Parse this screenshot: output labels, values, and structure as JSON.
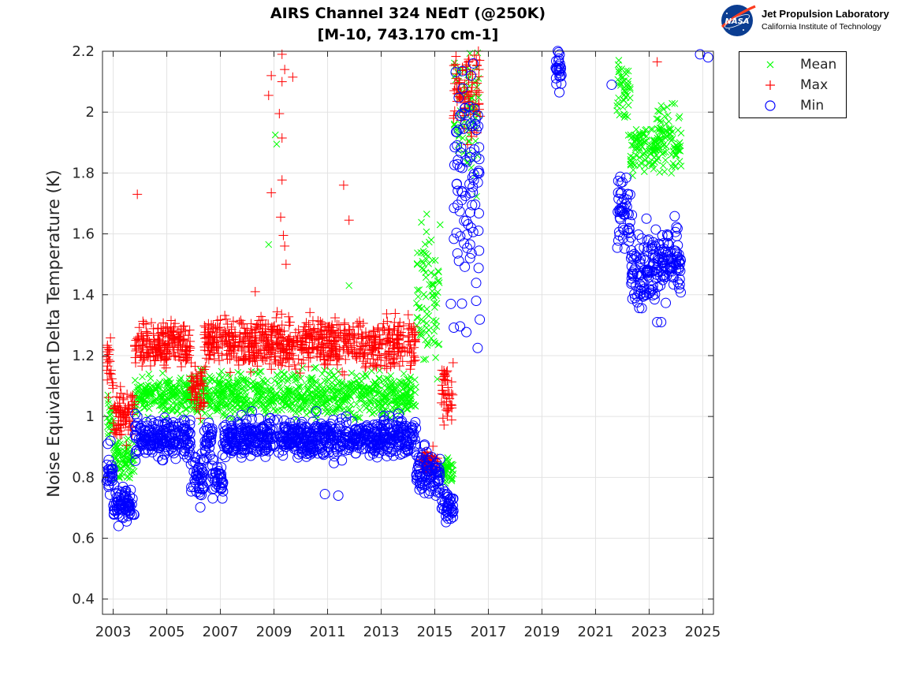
{
  "chart_data": {
    "type": "scatter",
    "title": "AIRS Channel 324 NEdT (@250K)",
    "subtitle": "[M-10, 743.170 cm-1]",
    "xlabel": "",
    "ylabel": "Noise Equivalent Delta Temperature (K)",
    "xlim": [
      2002.6,
      2025.4
    ],
    "ylim": [
      0.35,
      2.2
    ],
    "xticks": [
      2003,
      2005,
      2007,
      2009,
      2011,
      2013,
      2015,
      2017,
      2019,
      2021,
      2023,
      2025
    ],
    "xtick_labels": [
      "2003",
      "2005",
      "2007",
      "2009",
      "2011",
      "2013",
      "2015",
      "2017",
      "2019",
      "2021",
      "2023",
      "2025"
    ],
    "yticks": [
      0.4,
      0.6,
      0.8,
      1.0,
      1.2,
      1.4,
      1.6,
      1.8,
      2.0,
      2.2
    ],
    "ytick_labels": [
      "0.4",
      "0.6",
      "0.8",
      "1",
      "1.2",
      "1.4",
      "1.6",
      "1.8",
      "2",
      "2.2"
    ],
    "grid": true,
    "legend_position": "outside-top-right",
    "series": [
      {
        "name": "Mean",
        "color": "#00ff00",
        "marker": "x",
        "segments": [
          {
            "x0": 2002.75,
            "x1": 2003.0,
            "center": 0.99,
            "spread": 0.04
          },
          {
            "x0": 2003.0,
            "x1": 2003.8,
            "center": 0.86,
            "spread": 0.03
          },
          {
            "x0": 2003.8,
            "x1": 2005.9,
            "center": 1.07,
            "spread": 0.03
          },
          {
            "x0": 2005.9,
            "x1": 2006.4,
            "center": 1.08,
            "spread": 0.04
          },
          {
            "x0": 2006.4,
            "x1": 2014.3,
            "center": 1.07,
            "spread": 0.035
          },
          {
            "x0": 2014.3,
            "x1": 2015.2,
            "center": 1.38,
            "spread": 0.12
          },
          {
            "x0": 2015.25,
            "x1": 2015.7,
            "center": 0.82,
            "spread": 0.02
          },
          {
            "x0": 2015.7,
            "x1": 2016.7,
            "center": 2.05,
            "spread": 0.14
          },
          {
            "x0": 2021.8,
            "x1": 2022.3,
            "center": 2.08,
            "spread": 0.06
          },
          {
            "x0": 2022.3,
            "x1": 2023.3,
            "center": 1.88,
            "spread": 0.04
          },
          {
            "x0": 2023.3,
            "x1": 2024.2,
            "center": 1.91,
            "spread": 0.05
          }
        ],
        "outliers": [
          [
            2008.8,
            1.565
          ],
          [
            2009.05,
            1.925
          ],
          [
            2009.1,
            1.895
          ],
          [
            2011.8,
            1.43
          ],
          [
            2014.7,
            1.665
          ],
          [
            2015.2,
            1.63
          ],
          [
            2015.9,
            1.92
          ]
        ]
      },
      {
        "name": "Max",
        "color": "#ff0000",
        "marker": "+",
        "segments": [
          {
            "x0": 2002.75,
            "x1": 2003.0,
            "center": 1.17,
            "spread": 0.05
          },
          {
            "x0": 2003.0,
            "x1": 2003.8,
            "center": 1.01,
            "spread": 0.04
          },
          {
            "x0": 2003.8,
            "x1": 2005.9,
            "center": 1.24,
            "spread": 0.035
          },
          {
            "x0": 2005.9,
            "x1": 2006.4,
            "center": 1.08,
            "spread": 0.04
          },
          {
            "x0": 2006.4,
            "x1": 2014.3,
            "center": 1.24,
            "spread": 0.04
          },
          {
            "x0": 2014.5,
            "x1": 2015.1,
            "center": 0.85,
            "spread": 0.02
          },
          {
            "x0": 2015.25,
            "x1": 2015.7,
            "center": 1.07,
            "spread": 0.06
          },
          {
            "x0": 2015.7,
            "x1": 2016.7,
            "center": 2.1,
            "spread": 0.08
          }
        ],
        "outliers": [
          [
            2003.9,
            1.73
          ],
          [
            2008.8,
            2.055
          ],
          [
            2008.9,
            2.12
          ],
          [
            2008.9,
            1.735
          ],
          [
            2009.2,
            1.995
          ],
          [
            2009.3,
            1.915
          ],
          [
            2009.3,
            1.777
          ],
          [
            2009.25,
            1.655
          ],
          [
            2009.35,
            1.595
          ],
          [
            2009.4,
            1.56
          ],
          [
            2009.45,
            1.5
          ],
          [
            2009.3,
            2.19
          ],
          [
            2009.3,
            2.1
          ],
          [
            2009.4,
            2.14
          ],
          [
            2009.7,
            2.115
          ],
          [
            2011.6,
            1.76
          ],
          [
            2011.8,
            1.645
          ],
          [
            2023.3,
            2.165
          ],
          [
            2015.7,
            1.98
          ],
          [
            2009.6,
            1.31
          ],
          [
            2008.3,
            1.41
          ]
        ]
      },
      {
        "name": "Min",
        "color": "#0000ff",
        "marker": "o",
        "segments": [
          {
            "x0": 2002.75,
            "x1": 2003.0,
            "center": 0.81,
            "spread": 0.03
          },
          {
            "x0": 2003.0,
            "x1": 2003.8,
            "center": 0.71,
            "spread": 0.025
          },
          {
            "x0": 2003.8,
            "x1": 2005.9,
            "center": 0.93,
            "spread": 0.03
          },
          {
            "x0": 2005.9,
            "x1": 2006.4,
            "center": 0.8,
            "spread": 0.035
          },
          {
            "x0": 2006.4,
            "x1": 2006.7,
            "center": 0.93,
            "spread": 0.03
          },
          {
            "x0": 2006.7,
            "x1": 2007.1,
            "center": 0.79,
            "spread": 0.035
          },
          {
            "x0": 2007.1,
            "x1": 2014.3,
            "center": 0.93,
            "spread": 0.03
          },
          {
            "x0": 2014.3,
            "x1": 2015.2,
            "center": 0.82,
            "spread": 0.04
          },
          {
            "x0": 2015.25,
            "x1": 2015.7,
            "center": 0.71,
            "spread": 0.025
          },
          {
            "x0": 2015.7,
            "x1": 2016.7,
            "center": 1.78,
            "spread": 0.22
          },
          {
            "x0": 2019.5,
            "x1": 2019.75,
            "center": 2.15,
            "spread": 0.03
          },
          {
            "x0": 2021.8,
            "x1": 2022.3,
            "center": 1.66,
            "spread": 0.06
          },
          {
            "x0": 2022.3,
            "x1": 2023.3,
            "center": 1.5,
            "spread": 0.06
          },
          {
            "x0": 2023.3,
            "x1": 2024.2,
            "center": 1.52,
            "spread": 0.06
          }
        ],
        "outliers": [
          [
            2002.8,
            0.91
          ],
          [
            2002.9,
            0.92
          ],
          [
            2003.2,
            0.64
          ],
          [
            2003.5,
            0.655
          ],
          [
            2010.9,
            0.745
          ],
          [
            2011.4,
            0.74
          ],
          [
            2016.6,
            1.225
          ],
          [
            2016.1,
            1.995
          ],
          [
            2019.65,
            2.065
          ],
          [
            2021.6,
            2.09
          ],
          [
            2024.9,
            2.19
          ],
          [
            2025.2,
            2.18
          ],
          [
            2022.9,
            1.65
          ],
          [
            2023.3,
            1.31
          ],
          [
            2023.45,
            1.31
          ],
          [
            2015.6,
            1.37
          ]
        ]
      }
    ]
  },
  "logo": {
    "org": "Jet Propulsion Laboratory",
    "institute": "California Institute of Technology",
    "badge_text": "NASA"
  }
}
